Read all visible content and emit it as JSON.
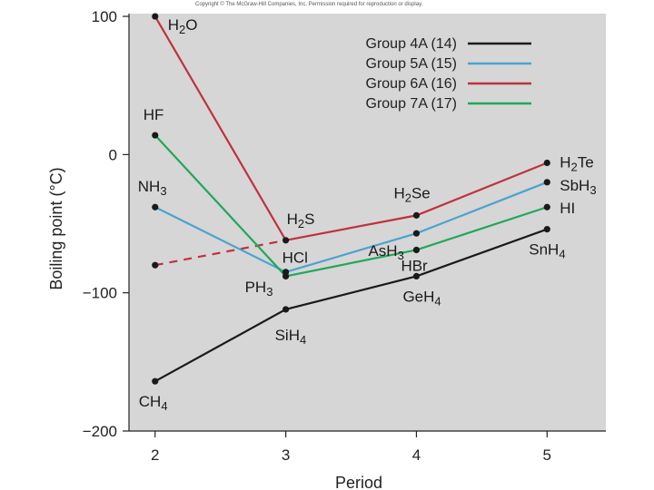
{
  "copyright": "Copyright © The McGraw-Hill Companies, Inc. Permission required for reproduction or display.",
  "chart_data": {
    "type": "line",
    "xlabel": "Period",
    "ylabel": "Boiling point (°C)",
    "x": [
      2,
      3,
      4,
      5
    ],
    "xlim": [
      1.8,
      5.45
    ],
    "ylim": [
      -200,
      102
    ],
    "xticks": [
      "2",
      "3",
      "4",
      "5"
    ],
    "yticks": [
      "100",
      "0",
      "−100",
      "−200"
    ],
    "ytick_values": [
      100,
      0,
      -100,
      -200
    ],
    "grid": false,
    "legend_position": "top-right",
    "series": [
      {
        "name": "Group 4A (14)",
        "color": "#1a1a1a",
        "values": [
          -164,
          -112,
          -88,
          -54
        ],
        "labels": [
          "CH4",
          "SiH4",
          "GeH4",
          "SnH4"
        ]
      },
      {
        "name": "Group 5A (15)",
        "color": "#4aa3cf",
        "values": [
          -38,
          -85,
          -57,
          -20
        ],
        "labels": [
          "NH3",
          "PH3",
          "AsH3",
          "SbH3"
        ]
      },
      {
        "name": "Group 6A (16)",
        "color": "#c0313f",
        "values": [
          100,
          -62,
          -44,
          -6
        ],
        "labels": [
          "H2O",
          "H2S",
          "H2Se",
          "H2Te"
        ],
        "extrapolated": {
          "x": 2,
          "value": -80,
          "dashed": true
        }
      },
      {
        "name": "Group 7A (17)",
        "color": "#1fa85a",
        "values": [
          14,
          -88,
          -69,
          -38
        ],
        "labels": [
          "HF",
          "HCl",
          "HBr",
          "HI"
        ]
      }
    ]
  }
}
